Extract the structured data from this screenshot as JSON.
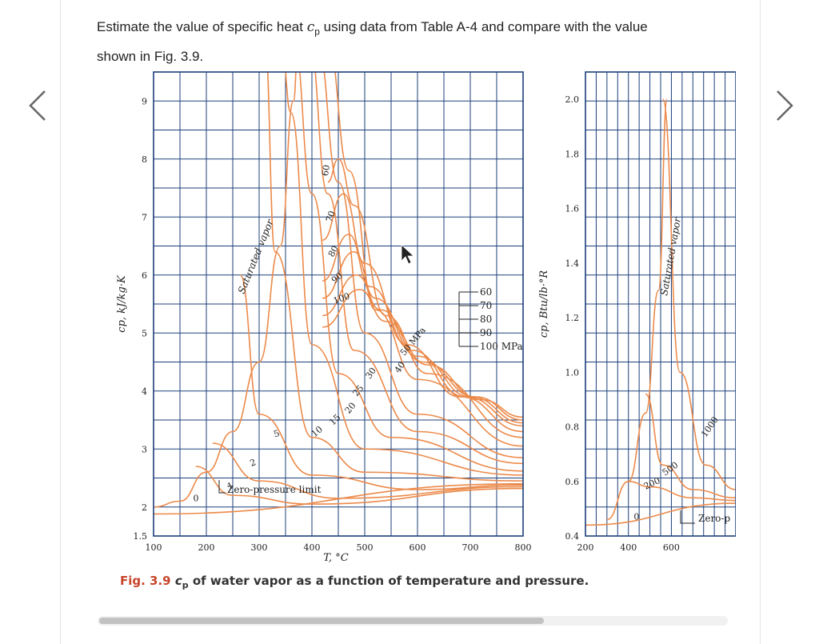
{
  "question": {
    "line1_a": "Estimate the value of specific heat ",
    "cp_symbol": "c",
    "cp_sub": "p",
    "line1_b": " using data from Table A-4 and compare with the value",
    "line2": "shown in Fig. 3.9."
  },
  "caption": {
    "fig_number": "Fig. 3.9",
    "cp_symbol": "c",
    "cp_sub": "p",
    "text": " of water vapor as a function of temperature and pressure."
  },
  "chart_data": [
    {
      "type": "line",
      "xlabel": "T, °C",
      "ylabel": "cp, kJ/kg·K",
      "xlim": [
        100,
        800
      ],
      "ylim": [
        1.5,
        9.5
      ],
      "xticks": [
        "100",
        "200",
        "300",
        "400",
        "500",
        "600",
        "700",
        "800"
      ],
      "yticks": [
        "1.5",
        "2",
        "3",
        "4",
        "5",
        "6",
        "7",
        "8",
        "9"
      ],
      "grid": true,
      "saturation_label": "Saturated vapor",
      "zero_pressure_label": "Zero-pressure limit",
      "isobar_labels": [
        "0",
        "1",
        "2",
        "5",
        "10",
        "15",
        "20",
        "25",
        "30",
        "40",
        "50 MPa",
        "60",
        "70",
        "80",
        "90",
        "100"
      ],
      "legend_items": [
        "60",
        "70",
        "80",
        "90",
        "100 MPa"
      ],
      "series": [
        {
          "name": "0",
          "x": [
            100,
            800
          ],
          "y": [
            1.88,
            2.4
          ]
        },
        {
          "name": "1",
          "x": [
            180,
            250,
            400,
            800
          ],
          "y": [
            2.7,
            2.2,
            2.05,
            2.32
          ]
        },
        {
          "name": "2",
          "x": [
            212,
            300,
            450,
            800
          ],
          "y": [
            3.1,
            2.45,
            2.15,
            2.35
          ]
        },
        {
          "name": "5",
          "x": [
            264,
            300,
            400,
            600,
            800
          ],
          "y": [
            6.0,
            3.6,
            2.55,
            2.3,
            2.38
          ]
        },
        {
          "name": "10",
          "x": [
            311,
            330,
            400,
            500,
            800
          ],
          "y": [
            10,
            6.4,
            3.2,
            2.6,
            2.45
          ]
        },
        {
          "name": "15",
          "x": [
            342,
            360,
            400,
            500,
            800
          ],
          "y": [
            10,
            8.8,
            4.8,
            3.0,
            2.55
          ]
        },
        {
          "name": "20",
          "x": [
            366,
            400,
            450,
            550,
            800
          ],
          "y": [
            10,
            7.4,
            4.3,
            3.2,
            2.62
          ]
        },
        {
          "name": "25",
          "x": [
            395,
            430,
            480,
            600,
            800
          ],
          "y": [
            10,
            7.4,
            4.7,
            3.3,
            2.75
          ]
        },
        {
          "name": "30",
          "x": [
            410,
            450,
            500,
            600,
            800
          ],
          "y": [
            10,
            7.6,
            5.0,
            3.6,
            2.85
          ]
        },
        {
          "name": "40",
          "x": [
            430,
            470,
            520,
            600,
            800
          ],
          "y": [
            10,
            7.8,
            5.4,
            4.2,
            3.05
          ]
        },
        {
          "name": "50",
          "x": [
            430,
            450,
            480,
            540,
            620,
            800
          ],
          "y": [
            7.6,
            8.0,
            7.2,
            5.3,
            4.3,
            3.2
          ]
        },
        {
          "name": "60",
          "x": [
            420,
            460,
            500,
            580,
            680,
            800
          ],
          "y": [
            6.6,
            7.4,
            6.2,
            4.8,
            3.9,
            3.3
          ]
        },
        {
          "name": "70",
          "x": [
            420,
            470,
            510,
            590,
            690,
            800
          ],
          "y": [
            5.9,
            6.7,
            5.8,
            4.7,
            3.9,
            3.4
          ]
        },
        {
          "name": "80",
          "x": [
            420,
            480,
            520,
            600,
            700,
            800
          ],
          "y": [
            5.6,
            6.4,
            5.6,
            4.6,
            3.9,
            3.45
          ]
        },
        {
          "name": "90",
          "x": [
            420,
            485,
            530,
            610,
            710,
            800
          ],
          "y": [
            5.3,
            6.0,
            5.4,
            4.5,
            3.9,
            3.5
          ]
        },
        {
          "name": "100",
          "x": [
            420,
            490,
            540,
            620,
            720,
            800
          ],
          "y": [
            5.1,
            5.75,
            5.2,
            4.45,
            3.85,
            3.55
          ]
        },
        {
          "name": "Saturated vapor",
          "x": [
            100,
            150,
            200,
            250,
            300,
            340,
            365,
            374
          ],
          "y": [
            2.0,
            2.1,
            2.6,
            3.3,
            4.5,
            6.5,
            9,
            10
          ]
        }
      ]
    },
    {
      "type": "line",
      "ylabel": "cp, Btu/lb·°R",
      "xlim": [
        200,
        900
      ],
      "ylim": [
        0.4,
        2.1
      ],
      "xticks": [
        "200",
        "400",
        "600"
      ],
      "yticks": [
        "0.4",
        "0.6",
        "0.8",
        "1.0",
        "1.2",
        "1.4",
        "1.6",
        "1.8",
        "2.0"
      ],
      "grid": true,
      "saturation_label": "Saturated vapor",
      "zero_pressure_label": "Zero-p",
      "isobar_labels": [
        "0",
        "200",
        "500",
        "1000"
      ],
      "series": [
        {
          "name": "0",
          "x": [
            200,
            900
          ],
          "y": [
            0.44,
            0.52
          ]
        },
        {
          "name": "200",
          "x": [
            400,
            500,
            700,
            900
          ],
          "y": [
            0.6,
            0.58,
            0.54,
            0.53
          ]
        },
        {
          "name": "500",
          "x": [
            480,
            560,
            700,
            900
          ],
          "y": [
            0.92,
            0.66,
            0.57,
            0.54
          ]
        },
        {
          "name": "1000",
          "x": [
            560,
            640,
            760,
            900
          ],
          "y": [
            2.0,
            1.0,
            0.66,
            0.57
          ]
        },
        {
          "name": "Saturated vapor",
          "x": [
            300,
            400,
            480,
            540,
            580
          ],
          "y": [
            0.46,
            0.6,
            0.85,
            1.3,
            2.0
          ]
        }
      ]
    }
  ]
}
